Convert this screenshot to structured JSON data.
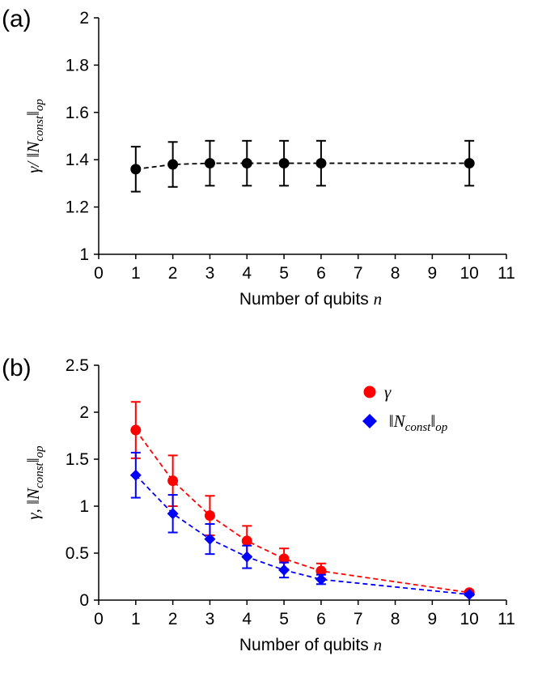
{
  "chart_data": [
    {
      "panel_label": "(a)",
      "type": "scatter",
      "xlabel_text": "Number of qubits ",
      "xlabel_var": "n",
      "ylabel": "γ/ ‖N_const‖_op",
      "xlim": [
        0,
        11
      ],
      "ylim": [
        1,
        2
      ],
      "xticks": [
        0,
        1,
        2,
        3,
        4,
        5,
        6,
        7,
        8,
        9,
        10,
        11
      ],
      "yticks": [
        1,
        1.2,
        1.4,
        1.6,
        1.8,
        2
      ],
      "ytick_labels": [
        "1",
        "1.2",
        "1.4",
        "1.6",
        "1.8",
        "2"
      ],
      "grid": false,
      "series": [
        {
          "marker": "circle",
          "color": "#000000",
          "line": "dashed",
          "x": [
            1,
            2,
            3,
            4,
            5,
            6,
            10
          ],
          "y": [
            1.36,
            1.38,
            1.385,
            1.385,
            1.385,
            1.385,
            1.385
          ],
          "yerr": [
            0.095,
            0.095,
            0.095,
            0.095,
            0.095,
            0.095,
            0.095
          ]
        }
      ]
    },
    {
      "panel_label": "(b)",
      "type": "scatter",
      "xlabel_text": "Number of qubits ",
      "xlabel_var": "n",
      "ylabel": "γ, ‖N_const‖_op",
      "xlim": [
        0,
        11
      ],
      "ylim": [
        0,
        2.5
      ],
      "xticks": [
        0,
        1,
        2,
        3,
        4,
        5,
        6,
        7,
        8,
        9,
        10,
        11
      ],
      "yticks": [
        0,
        0.5,
        1,
        1.5,
        2,
        2.5
      ],
      "ytick_labels": [
        "0",
        "0.5",
        "1",
        "1.5",
        "2",
        "2.5"
      ],
      "grid": false,
      "legend_position": "top-right",
      "series": [
        {
          "name": "γ",
          "marker": "circle",
          "color": "#ff0000",
          "line": "dashed",
          "x": [
            1,
            2,
            3,
            4,
            5,
            6,
            10
          ],
          "y": [
            1.81,
            1.27,
            0.9,
            0.63,
            0.44,
            0.31,
            0.08
          ],
          "yerr": [
            0.3,
            0.27,
            0.21,
            0.16,
            0.11,
            0.08,
            0.02
          ]
        },
        {
          "name": "‖N_const‖_op",
          "marker": "diamond",
          "color": "#0000ff",
          "line": "dashed",
          "x": [
            1,
            2,
            3,
            4,
            5,
            6,
            10
          ],
          "y": [
            1.33,
            0.92,
            0.65,
            0.46,
            0.32,
            0.22,
            0.06
          ],
          "yerr": [
            0.24,
            0.2,
            0.16,
            0.12,
            0.08,
            0.05,
            0.01
          ]
        }
      ]
    }
  ]
}
